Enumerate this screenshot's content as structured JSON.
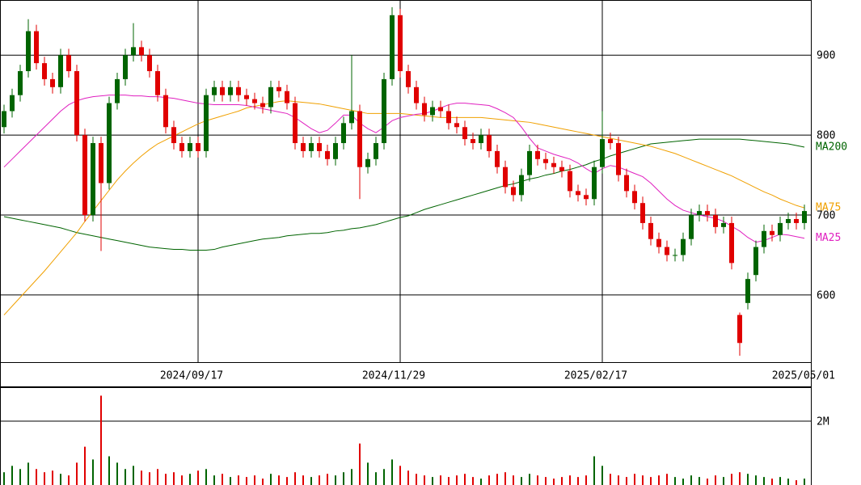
{
  "chart_data": [
    {
      "type": "candlestick",
      "categories": [
        null,
        null,
        null,
        null,
        null,
        null,
        null,
        null,
        null,
        null,
        null,
        null,
        null,
        null,
        null,
        null,
        null,
        null,
        null,
        null,
        null,
        null,
        null,
        null,
        "2024/09/17",
        null,
        null,
        null,
        null,
        null,
        null,
        null,
        null,
        null,
        null,
        null,
        null,
        null,
        null,
        null,
        null,
        null,
        null,
        null,
        null,
        null,
        null,
        null,
        null,
        "2024/11/29",
        null,
        null,
        null,
        null,
        null,
        null,
        null,
        null,
        null,
        null,
        null,
        null,
        null,
        null,
        null,
        null,
        null,
        null,
        null,
        null,
        null,
        null,
        null,
        null,
        "2025/02/17",
        null,
        null,
        null,
        null,
        null,
        null,
        null,
        null,
        null,
        null,
        null,
        null,
        null,
        null,
        null,
        null,
        null,
        null,
        null,
        null,
        null,
        null,
        null,
        null,
        "2025/05/01"
      ],
      "open": [
        810,
        830,
        850,
        880,
        930,
        890,
        870,
        860,
        900,
        880,
        800,
        700,
        790,
        740,
        840,
        870,
        900,
        910,
        900,
        880,
        850,
        810,
        790,
        780,
        790,
        780,
        850,
        860,
        850,
        860,
        850,
        845,
        840,
        835,
        860,
        855,
        840,
        790,
        780,
        790,
        780,
        770,
        790,
        815,
        830,
        760,
        770,
        790,
        870,
        950,
        880,
        860,
        840,
        825,
        835,
        830,
        815,
        810,
        795,
        790,
        800,
        780,
        760,
        735,
        725,
        750,
        780,
        770,
        765,
        760,
        755,
        730,
        725,
        720,
        760,
        795,
        790,
        750,
        730,
        715,
        690,
        670,
        660,
        650,
        650,
        670,
        700,
        705,
        700,
        685,
        690,
        575,
        590,
        625,
        660,
        680,
        675,
        690,
        695,
        690
      ],
      "high": [
        838,
        858,
        888,
        945,
        938,
        898,
        878,
        908,
        908,
        888,
        808,
        798,
        798,
        848,
        878,
        908,
        940,
        918,
        908,
        888,
        858,
        818,
        798,
        798,
        798,
        858,
        868,
        868,
        868,
        868,
        858,
        853,
        848,
        868,
        868,
        863,
        848,
        798,
        798,
        798,
        788,
        798,
        823,
        900,
        838,
        778,
        798,
        878,
        960,
        958,
        888,
        868,
        848,
        843,
        843,
        838,
        823,
        818,
        803,
        808,
        808,
        788,
        768,
        743,
        758,
        788,
        788,
        778,
        773,
        768,
        763,
        738,
        733,
        768,
        830,
        803,
        798,
        758,
        738,
        723,
        698,
        678,
        668,
        658,
        678,
        708,
        713,
        713,
        708,
        698,
        698,
        578,
        628,
        668,
        688,
        688,
        698,
        703,
        703,
        713
      ],
      "low": [
        802,
        822,
        842,
        872,
        882,
        862,
        852,
        852,
        872,
        792,
        692,
        692,
        655,
        732,
        832,
        862,
        892,
        892,
        872,
        842,
        802,
        782,
        772,
        772,
        772,
        772,
        842,
        842,
        842,
        842,
        837,
        832,
        827,
        827,
        847,
        832,
        782,
        772,
        772,
        772,
        762,
        762,
        782,
        807,
        720,
        752,
        762,
        782,
        862,
        872,
        852,
        832,
        817,
        817,
        822,
        807,
        802,
        787,
        782,
        782,
        772,
        752,
        727,
        717,
        717,
        742,
        762,
        757,
        752,
        747,
        722,
        717,
        712,
        712,
        752,
        782,
        742,
        722,
        707,
        682,
        662,
        652,
        642,
        642,
        642,
        662,
        692,
        692,
        677,
        677,
        632,
        524,
        582,
        617,
        652,
        667,
        667,
        682,
        682,
        682
      ],
      "close": [
        830,
        850,
        880,
        930,
        890,
        870,
        860,
        900,
        880,
        800,
        700,
        790,
        740,
        840,
        870,
        900,
        910,
        900,
        880,
        850,
        810,
        790,
        780,
        790,
        780,
        850,
        860,
        850,
        860,
        850,
        845,
        840,
        835,
        860,
        855,
        840,
        790,
        780,
        790,
        780,
        770,
        790,
        815,
        830,
        760,
        770,
        790,
        870,
        950,
        880,
        860,
        840,
        825,
        835,
        830,
        815,
        810,
        795,
        790,
        800,
        780,
        760,
        735,
        725,
        750,
        780,
        770,
        765,
        760,
        755,
        730,
        725,
        720,
        760,
        795,
        790,
        750,
        730,
        715,
        690,
        670,
        660,
        650,
        650,
        670,
        700,
        705,
        700,
        685,
        690,
        640,
        540,
        620,
        660,
        680,
        675,
        690,
        695,
        690,
        705
      ],
      "up_color": "#006400",
      "down_color": "#e00000",
      "series": [
        {
          "name": "MA200",
          "color": "#006400",
          "values": [
            698,
            696,
            694,
            692,
            690,
            688,
            686,
            684,
            681,
            678,
            676,
            674,
            672,
            670,
            668,
            666,
            664,
            662,
            660,
            659,
            658,
            657,
            657,
            656,
            656,
            656,
            657,
            660,
            662,
            664,
            666,
            668,
            670,
            671,
            672,
            674,
            675,
            676,
            677,
            677,
            678,
            680,
            681,
            683,
            684,
            686,
            688,
            691,
            694,
            697,
            699,
            703,
            707,
            710,
            713,
            716,
            719,
            722,
            725,
            728,
            731,
            734,
            737,
            739,
            742,
            745,
            747,
            750,
            752,
            755,
            757,
            760,
            763,
            767,
            770,
            774,
            777,
            780,
            783,
            786,
            789,
            790,
            791,
            792,
            793,
            794,
            795,
            795,
            795,
            795,
            795,
            795,
            794,
            793,
            792,
            791,
            790,
            789,
            787,
            785
          ]
        },
        {
          "name": "MA75",
          "color": "#f0a000",
          "values": [
            575,
            586,
            597,
            608,
            619,
            630,
            642,
            654,
            666,
            678,
            692,
            705,
            718,
            731,
            744,
            755,
            765,
            774,
            782,
            789,
            794,
            799,
            804,
            809,
            814,
            818,
            821,
            824,
            827,
            830,
            834,
            836,
            838,
            840,
            842,
            843,
            842,
            841,
            840,
            839,
            837,
            835,
            833,
            831,
            829,
            827,
            827,
            827,
            827,
            827,
            826,
            825,
            824,
            823,
            822,
            822,
            822,
            822,
            822,
            822,
            821,
            820,
            819,
            818,
            817,
            816,
            814,
            812,
            810,
            808,
            806,
            804,
            802,
            800,
            798,
            796,
            794,
            792,
            790,
            788,
            786,
            783,
            780,
            777,
            773,
            769,
            765,
            761,
            757,
            753,
            749,
            744,
            739,
            734,
            729,
            725,
            720,
            716,
            712,
            709
          ]
        },
        {
          "name": "MA25",
          "color": "#e020c0",
          "values": [
            760,
            770,
            780,
            790,
            800,
            810,
            820,
            830,
            838,
            843,
            846,
            848,
            849,
            850,
            850,
            850,
            849,
            849,
            848,
            848,
            847,
            846,
            844,
            842,
            840,
            839,
            838,
            838,
            838,
            838,
            837,
            835,
            833,
            831,
            829,
            827,
            822,
            815,
            808,
            803,
            806,
            815,
            825,
            825,
            815,
            808,
            803,
            810,
            818,
            822,
            824,
            826,
            827,
            830,
            834,
            838,
            840,
            840,
            839,
            838,
            837,
            833,
            828,
            822,
            810,
            796,
            784,
            780,
            776,
            773,
            770,
            765,
            758,
            752,
            758,
            762,
            760,
            756,
            752,
            748,
            740,
            730,
            720,
            712,
            706,
            703,
            700,
            698,
            696,
            692,
            686,
            680,
            672,
            666,
            668,
            672,
            676,
            675,
            673,
            671
          ]
        }
      ],
      "ylim": [
        516,
        969
      ],
      "yticks": [
        600,
        700,
        800,
        900
      ],
      "grid": true
    },
    {
      "type": "bar",
      "values": [
        400000,
        600000,
        500000,
        700000,
        500000,
        400000,
        450000,
        350000,
        300000,
        700000,
        1200000,
        800000,
        2800000,
        900000,
        700000,
        500000,
        600000,
        450000,
        400000,
        500000,
        350000,
        400000,
        300000,
        350000,
        450000,
        500000,
        300000,
        350000,
        250000,
        300000,
        250000,
        300000,
        200000,
        350000,
        300000,
        250000,
        400000,
        300000,
        250000,
        300000,
        350000,
        300000,
        400000,
        500000,
        1300000,
        700000,
        400000,
        500000,
        800000,
        600000,
        450000,
        350000,
        300000,
        250000,
        300000,
        250000,
        300000,
        350000,
        250000,
        200000,
        300000,
        350000,
        400000,
        300000,
        250000,
        350000,
        300000,
        250000,
        200000,
        250000,
        300000,
        250000,
        300000,
        900000,
        600000,
        350000,
        300000,
        250000,
        350000,
        300000,
        250000,
        300000,
        350000,
        250000,
        200000,
        300000,
        250000,
        200000,
        300000,
        250000,
        350000,
        400000,
        350000,
        300000,
        250000,
        200000,
        250000,
        200000,
        150000,
        200000
      ],
      "ylim": [
        0,
        3040000
      ],
      "yticks": [
        {
          "value": 2000000,
          "label": "2M"
        }
      ],
      "grid": true
    }
  ]
}
